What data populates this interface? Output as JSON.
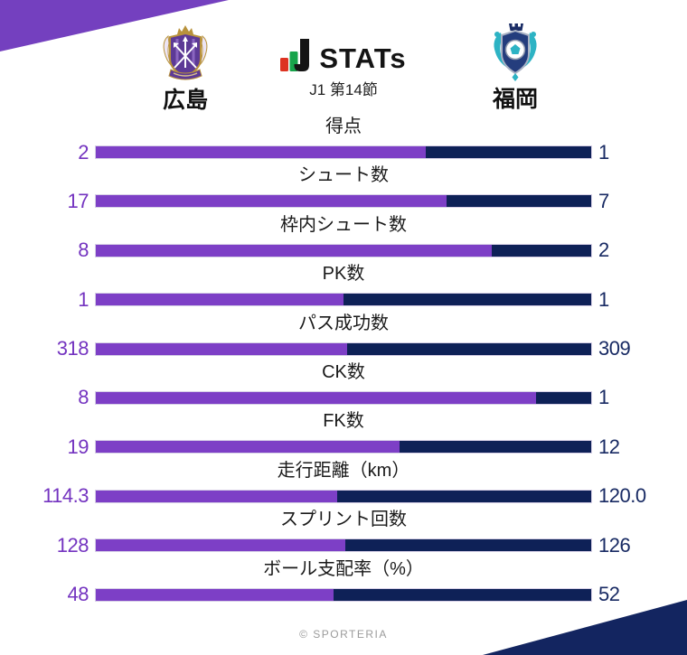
{
  "colors": {
    "home_bar": "#7d3fc6",
    "home_value_text": "#7434c0",
    "away_bar": "#0e2157",
    "away_value_text": "#182a63",
    "corner_top_left": "#7440bf",
    "corner_bottom_right": "#132560",
    "bar_border": "#d6cfe6",
    "label_text": "#1a1a1a",
    "footer_text": "#9b9b9b",
    "brand_red": "#dd3322",
    "brand_green": "#18a44b",
    "brand_black": "#141414"
  },
  "header": {
    "brand": "STATs",
    "brand_icon": "j-stats-logo-icon",
    "subtitle": "J1 第14節",
    "home": {
      "name": "広島",
      "crest_icon": "sanfrecce-hiroshima-crest"
    },
    "away": {
      "name": "福岡",
      "crest_icon": "avispa-fukuoka-crest"
    }
  },
  "chart_data": {
    "type": "bar",
    "variant": "head-to-head-horizontal",
    "title": "STATs J1 第14節 広島 vs 福岡",
    "categories": [
      "得点",
      "シュート数",
      "枠内シュート数",
      "PK数",
      "パス成功数",
      "CK数",
      "FK数",
      "走行距離（km）",
      "スプリント回数",
      "ボール支配率（%）"
    ],
    "series": [
      {
        "name": "広島",
        "side": "left",
        "color": "#7d3fc6",
        "values": [
          2,
          17,
          8,
          1,
          318,
          8,
          19,
          114.3,
          128,
          48
        ],
        "value_labels": [
          "2",
          "17",
          "8",
          "1",
          "318",
          "8",
          "19",
          "114.3",
          "128",
          "48"
        ]
      },
      {
        "name": "福岡",
        "side": "right",
        "color": "#0e2157",
        "values": [
          1,
          7,
          2,
          1,
          309,
          1,
          12,
          120.0,
          126,
          52
        ],
        "value_labels": [
          "1",
          "7",
          "2",
          "1",
          "309",
          "1",
          "12",
          "120.0",
          "126",
          "52"
        ]
      }
    ],
    "layout": "each bar is split left/(left+right); left segment purple (広島), right segment navy (福岡)"
  },
  "footer": {
    "credit": "© SPORTERIA"
  }
}
